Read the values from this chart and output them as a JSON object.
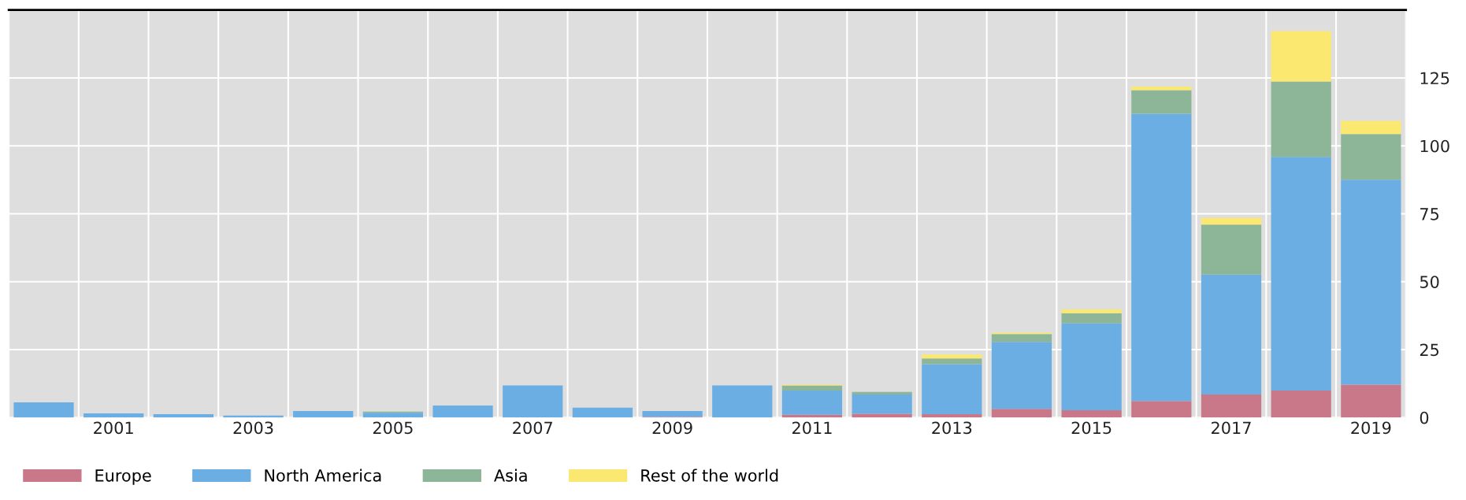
{
  "chart_data": {
    "type": "bar",
    "stacked": true,
    "categories": [
      null,
      "2001",
      null,
      "2003",
      null,
      "2005",
      null,
      "2007",
      null,
      "2009",
      null,
      "2011",
      null,
      "2013",
      null,
      "2015",
      null,
      "2017",
      null,
      "2019"
    ],
    "series": [
      {
        "name": "Europe",
        "color": "#c9788a",
        "values": [
          0,
          0,
          0,
          0,
          0,
          0,
          0,
          0,
          0,
          0.3,
          0,
          1,
          1.4,
          1.2,
          3.2,
          2.7,
          6.1,
          8.5,
          9.9,
          12.1
        ]
      },
      {
        "name": "North America",
        "color": "#6aaee3",
        "values": [
          5.6,
          1.5,
          1.2,
          0.7,
          2.4,
          1.7,
          4.4,
          11.8,
          3.6,
          2.1,
          11.8,
          8.9,
          7.1,
          18.4,
          24.6,
          31.9,
          105.7,
          44.1,
          86,
          75.4
        ]
      },
      {
        "name": "Asia",
        "color": "#8db598",
        "values": [
          0,
          0,
          0,
          0,
          0,
          0.5,
          0,
          0,
          0,
          0,
          0,
          1.9,
          0.9,
          2.1,
          2.9,
          3.8,
          8.7,
          18.4,
          27.8,
          16.8
        ]
      },
      {
        "name": "Rest of the world",
        "color": "#fbe870",
        "values": [
          0,
          0,
          0,
          0,
          0,
          0,
          0,
          0,
          0,
          0,
          0,
          0.3,
          0,
          1.5,
          0.5,
          1.4,
          1.3,
          2.5,
          18.5,
          4.9
        ]
      }
    ],
    "ylim": [
      0,
      150
    ],
    "yticks": [
      0,
      25,
      50,
      75,
      100,
      125
    ],
    "grid": true,
    "legend": "bottom left"
  }
}
